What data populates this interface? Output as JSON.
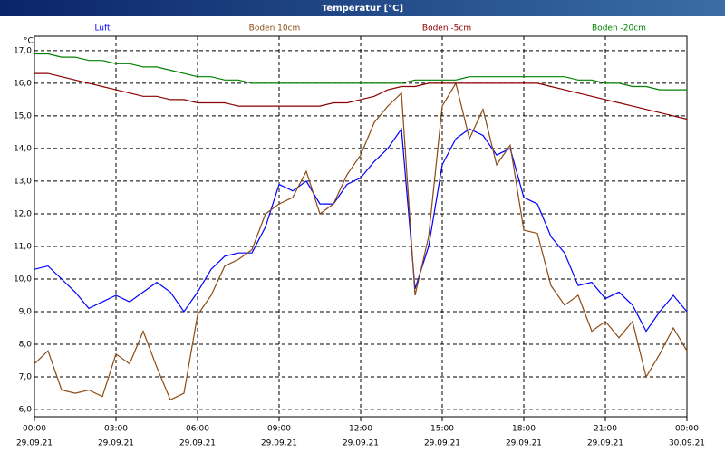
{
  "chart_data": {
    "type": "line",
    "title": "Temperatur [°C]",
    "y_unit": "°C",
    "x": [
      0,
      0.5,
      1,
      1.5,
      2,
      2.5,
      3,
      3.5,
      4,
      4.5,
      5,
      5.5,
      6,
      6.5,
      7,
      7.5,
      8,
      8.5,
      9,
      9.5,
      10,
      10.5,
      11,
      11.5,
      12,
      12.5,
      13,
      13.5,
      14,
      14.5,
      15,
      15.5,
      16,
      16.5,
      17,
      17.5,
      18,
      18.5,
      19,
      19.5,
      20,
      20.5,
      21,
      21.5,
      22,
      22.5,
      23,
      23.5,
      24
    ],
    "series": [
      {
        "name": "Luft",
        "color": "#0000ff",
        "values": [
          10.3,
          10.4,
          10.0,
          9.6,
          9.1,
          9.3,
          9.5,
          9.3,
          9.6,
          9.9,
          9.6,
          9.0,
          9.6,
          10.3,
          10.7,
          10.8,
          10.8,
          11.6,
          12.9,
          12.7,
          13.0,
          12.3,
          12.3,
          12.9,
          13.1,
          13.6,
          14.0,
          14.6,
          9.7,
          11.0,
          13.5,
          14.3,
          14.6,
          14.4,
          13.8,
          14.0,
          12.5,
          12.3,
          11.3,
          10.8,
          9.8,
          9.9,
          9.4,
          9.6,
          9.2,
          8.4,
          9.0,
          9.5,
          9.0
        ]
      },
      {
        "name": "Boden 10cm",
        "color": "#8b4a13",
        "values": [
          7.4,
          7.8,
          6.6,
          6.5,
          6.6,
          6.4,
          7.7,
          7.4,
          8.4,
          7.3,
          6.3,
          6.5,
          8.9,
          9.5,
          10.4,
          10.6,
          10.9,
          12.0,
          12.3,
          12.5,
          13.3,
          12.0,
          12.3,
          13.2,
          13.8,
          14.8,
          15.3,
          15.7,
          9.5,
          11.3,
          15.3,
          16.0,
          14.3,
          15.2,
          13.5,
          14.1,
          11.5,
          11.4,
          9.8,
          9.2,
          9.5,
          8.4,
          8.7,
          8.2,
          8.7,
          7.0,
          7.7,
          8.5,
          7.8
        ]
      },
      {
        "name": "Boden -5cm",
        "color": "#8b0000",
        "values": [
          16.3,
          16.3,
          16.2,
          16.1,
          16.0,
          15.9,
          15.8,
          15.7,
          15.6,
          15.6,
          15.5,
          15.5,
          15.4,
          15.4,
          15.4,
          15.3,
          15.3,
          15.3,
          15.3,
          15.3,
          15.3,
          15.3,
          15.4,
          15.4,
          15.5,
          15.6,
          15.8,
          15.9,
          15.9,
          16.0,
          16.0,
          16.0,
          16.0,
          16.0,
          16.0,
          16.0,
          16.0,
          16.0,
          15.9,
          15.8,
          15.7,
          15.6,
          15.5,
          15.4,
          15.3,
          15.2,
          15.1,
          15.0,
          14.9
        ]
      },
      {
        "name": "Boden -20cm",
        "color": "#008000",
        "values": [
          16.9,
          16.9,
          16.8,
          16.8,
          16.7,
          16.7,
          16.6,
          16.6,
          16.5,
          16.5,
          16.4,
          16.3,
          16.2,
          16.2,
          16.1,
          16.1,
          16.0,
          16.0,
          16.0,
          16.0,
          16.0,
          16.0,
          16.0,
          16.0,
          16.0,
          16.0,
          16.0,
          16.0,
          16.1,
          16.1,
          16.1,
          16.1,
          16.2,
          16.2,
          16.2,
          16.2,
          16.2,
          16.2,
          16.2,
          16.2,
          16.1,
          16.1,
          16.0,
          16.0,
          15.9,
          15.9,
          15.8,
          15.8,
          15.8
        ]
      }
    ],
    "xlim": [
      0,
      24
    ],
    "xticks": [
      {
        "value": 0,
        "label": "00:00"
      },
      {
        "value": 3,
        "label": "03:00"
      },
      {
        "value": 6,
        "label": "06:00"
      },
      {
        "value": 9,
        "label": "09:00"
      },
      {
        "value": 12,
        "label": "12:00"
      },
      {
        "value": 15,
        "label": "15:00"
      },
      {
        "value": 18,
        "label": "18:00"
      },
      {
        "value": 21,
        "label": "21:00"
      },
      {
        "value": 24,
        "label": "00:00"
      }
    ],
    "xtick_dates": [
      "29.09.21",
      "29.09.21",
      "29.09.21",
      "29.09.21",
      "29.09.21",
      "29.09.21",
      "29.09.21",
      "29.09.21",
      "30.09.21"
    ],
    "ylim": [
      5.78,
      17.44
    ],
    "yticks": [
      {
        "value": 6,
        "label": "6,0"
      },
      {
        "value": 7,
        "label": "7,0"
      },
      {
        "value": 8,
        "label": "8,0"
      },
      {
        "value": 9,
        "label": "9,0"
      },
      {
        "value": 10,
        "label": "10,0"
      },
      {
        "value": 11,
        "label": "11,0"
      },
      {
        "value": 12,
        "label": "12,0"
      },
      {
        "value": 13,
        "label": "13,0"
      },
      {
        "value": 14,
        "label": "14,0"
      },
      {
        "value": 15,
        "label": "15,0"
      },
      {
        "value": 16,
        "label": "16,0"
      },
      {
        "value": 17,
        "label": "17,0"
      }
    ],
    "grid": true
  }
}
